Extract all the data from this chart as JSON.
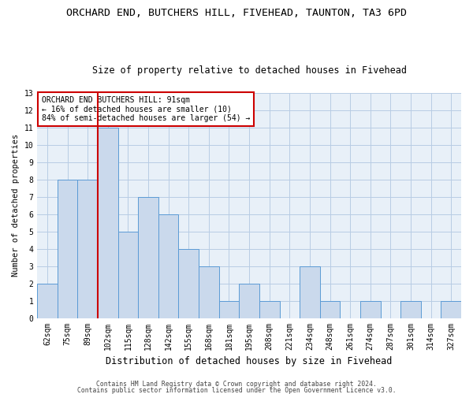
{
  "title": "ORCHARD END, BUTCHERS HILL, FIVEHEAD, TAUNTON, TA3 6PD",
  "subtitle": "Size of property relative to detached houses in Fivehead",
  "xlabel": "Distribution of detached houses by size in Fivehead",
  "ylabel": "Number of detached properties",
  "categories": [
    "62sqm",
    "75sqm",
    "89sqm",
    "102sqm",
    "115sqm",
    "128sqm",
    "142sqm",
    "155sqm",
    "168sqm",
    "181sqm",
    "195sqm",
    "208sqm",
    "221sqm",
    "234sqm",
    "248sqm",
    "261sqm",
    "274sqm",
    "287sqm",
    "301sqm",
    "314sqm",
    "327sqm"
  ],
  "values": [
    2,
    8,
    8,
    11,
    5,
    7,
    6,
    4,
    3,
    1,
    2,
    1,
    0,
    3,
    1,
    0,
    1,
    0,
    1,
    0,
    1
  ],
  "bar_color": "#cad9ec",
  "bar_edge_color": "#5b9bd5",
  "highlight_index": 2,
  "highlight_line_color": "#cc0000",
  "ylim": [
    0,
    13
  ],
  "yticks": [
    0,
    1,
    2,
    3,
    4,
    5,
    6,
    7,
    8,
    9,
    10,
    11,
    12,
    13
  ],
  "annotation_text": "ORCHARD END BUTCHERS HILL: 91sqm\n← 16% of detached houses are smaller (10)\n84% of semi-detached houses are larger (54) →",
  "annotation_box_color": "#ffffff",
  "annotation_box_edge": "#cc0000",
  "footer1": "Contains HM Land Registry data © Crown copyright and database right 2024.",
  "footer2": "Contains public sector information licensed under the Open Government Licence v3.0.",
  "bg_color": "#ffffff",
  "plot_bg_color": "#e8f0f8",
  "grid_color": "#b8cce4",
  "title_fontsize": 9.5,
  "subtitle_fontsize": 8.5,
  "xlabel_fontsize": 8.5,
  "ylabel_fontsize": 7.5,
  "tick_fontsize": 7,
  "annotation_fontsize": 7,
  "footer_fontsize": 5.8
}
